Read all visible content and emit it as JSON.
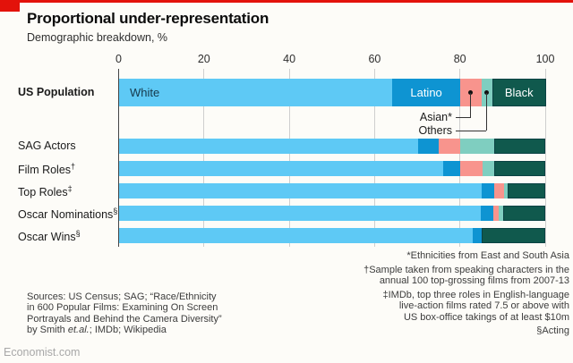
{
  "brand": {
    "red": "#e3120b"
  },
  "header": {
    "title": "Proportional under-representation",
    "subtitle": "Demographic breakdown, %"
  },
  "chart_data": {
    "type": "bar",
    "stacked": true,
    "orientation": "horizontal",
    "xlim": [
      0,
      100
    ],
    "ticks": [
      0,
      20,
      40,
      60,
      80,
      100
    ],
    "grid": true,
    "segments": [
      {
        "key": "white",
        "label": "White",
        "color": "#5ec9f5"
      },
      {
        "key": "latino",
        "label": "Latino",
        "color": "#0e94d2"
      },
      {
        "key": "asian",
        "label": "Asian",
        "color": "#f8948d"
      },
      {
        "key": "others",
        "label": "Others",
        "color": "#7fcec0"
      },
      {
        "key": "black",
        "label": "Black",
        "color": "#10594d"
      }
    ],
    "rows": [
      {
        "label": "US Population",
        "sup": "",
        "bold": true,
        "values": [
          64,
          16,
          5,
          2.5,
          12.5
        ],
        "inner_labels": [
          "White",
          "Latino",
          null,
          null,
          "Black"
        ]
      },
      {
        "label": "SAG Actors",
        "sup": "",
        "values": [
          70,
          5,
          5,
          8,
          12
        ]
      },
      {
        "label": "Film Roles",
        "sup": "†",
        "values": [
          76,
          4,
          5.2,
          2.8,
          12
        ]
      },
      {
        "label": "Top Roles",
        "sup": "‡",
        "values": [
          85,
          3,
          2.2,
          0.8,
          9
        ]
      },
      {
        "label": "Oscar Nominations",
        "sup": "§",
        "values": [
          84.8,
          3,
          1.2,
          1,
          10
        ]
      },
      {
        "label": "Oscar Wins",
        "sup": "§",
        "values": [
          83,
          2,
          0,
          0,
          15
        ]
      }
    ],
    "callouts": [
      {
        "label": "Asian*",
        "segment_index": 2
      },
      {
        "label": "Others",
        "segment_index": 3
      }
    ]
  },
  "footnotes": [
    {
      "lines": [
        "*Ethnicities from East and South Asia"
      ]
    },
    {
      "lines": [
        "†Sample taken from speaking characters in the",
        "annual 100 top-grossing films from 2007-13"
      ]
    },
    {
      "lines": [
        "‡IMDb, top three roles in English-language",
        "live-action films rated 7.5 or above with",
        "US box-office takings of at least $10m"
      ]
    },
    {
      "lines": [
        "§Acting"
      ]
    }
  ],
  "sources": {
    "lines": [
      "Sources: US Census; SAG; “Race/Ethnicity",
      "in 600 Popular Films: Examining On Screen",
      "Portrayals and Behind the Camera Diversity”"
    ],
    "last_line": {
      "pre": "by Smith ",
      "italic": "et.al.",
      "post": "; IMDb; Wikipedia"
    }
  },
  "footer": {
    "site": "Economist.com"
  }
}
